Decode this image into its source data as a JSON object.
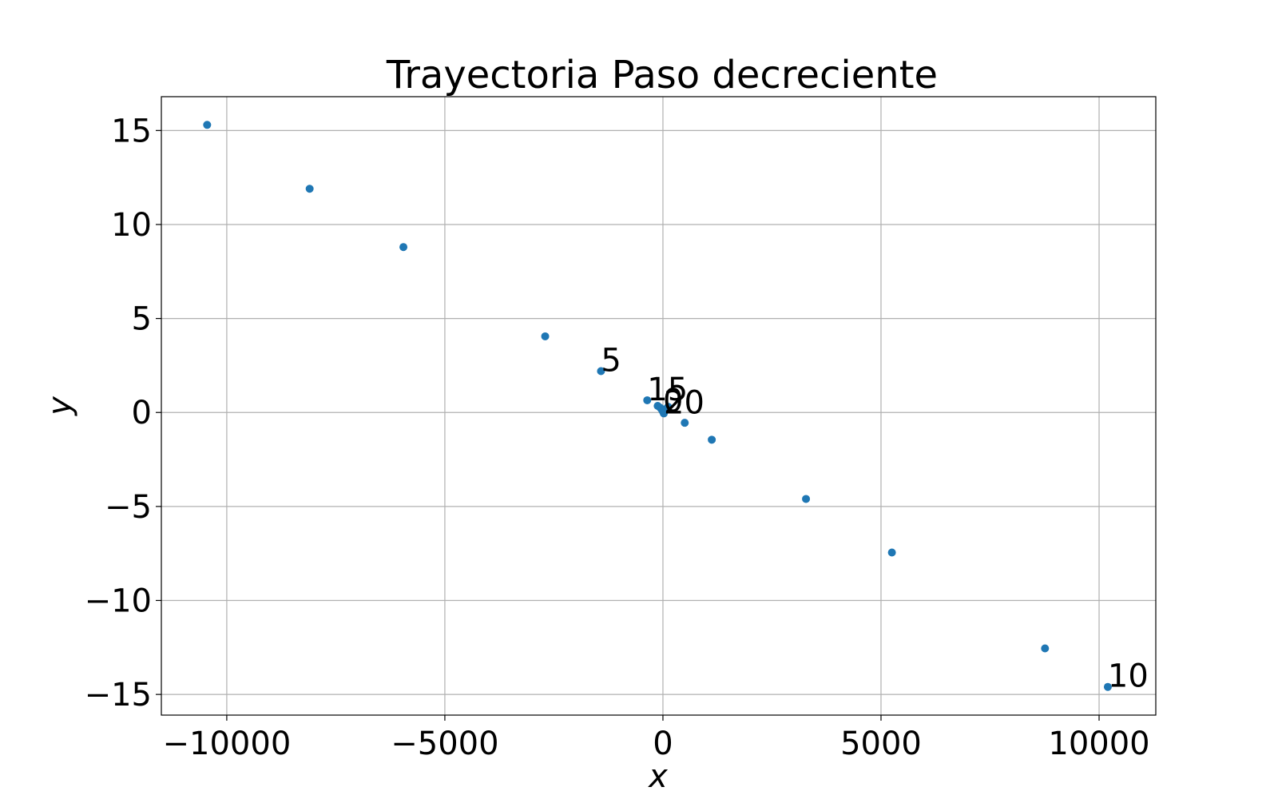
{
  "chart_data": {
    "type": "scatter",
    "title": "Trayectoria Paso decreciente",
    "xlabel": "x",
    "ylabel": "y",
    "xlim": [
      -11500,
      11300
    ],
    "ylim": [
      -16.1,
      16.8
    ],
    "grid": true,
    "x_ticks": [
      -10000,
      -5000,
      0,
      5000,
      10000
    ],
    "x_tick_labels": [
      "−10000",
      "−5000",
      "0",
      "5000",
      "10000"
    ],
    "y_ticks": [
      -15,
      -10,
      -5,
      0,
      5,
      10,
      15
    ],
    "y_tick_labels": [
      "−15",
      "−10",
      "−5",
      "0",
      "5",
      "10",
      "15"
    ],
    "marker_color": "#1f77b4",
    "points": [
      {
        "x": -10450,
        "y": 15.3
      },
      {
        "x": -8100,
        "y": 11.9
      },
      {
        "x": -5950,
        "y": 8.8
      },
      {
        "x": -2700,
        "y": 4.05
      },
      {
        "x": -1420,
        "y": 2.2
      },
      {
        "x": -360,
        "y": 0.65
      },
      {
        "x": -120,
        "y": 0.35
      },
      {
        "x": -60,
        "y": 0.25
      },
      {
        "x": -25,
        "y": 0.15
      },
      {
        "x": 0,
        "y": 0.05
      },
      {
        "x": 20,
        "y": -0.05
      },
      {
        "x": 45,
        "y": 0.12
      },
      {
        "x": 80,
        "y": 0.2
      },
      {
        "x": 120,
        "y": 0.3
      },
      {
        "x": 500,
        "y": -0.55
      },
      {
        "x": 1120,
        "y": -1.45
      },
      {
        "x": 3280,
        "y": -4.6
      },
      {
        "x": 5250,
        "y": -7.45
      },
      {
        "x": 8760,
        "y": -12.55
      },
      {
        "x": 10200,
        "y": -14.6
      }
    ],
    "annotations": [
      {
        "text": "5",
        "x": -1420,
        "y": 2.2
      },
      {
        "text": "10",
        "x": 10200,
        "y": -14.6
      },
      {
        "text": "15",
        "x": -360,
        "y": 0.65
      },
      {
        "text": "20",
        "x": 20,
        "y": -0.05
      },
      {
        "text": "0",
        "x": 0,
        "y": 0.05
      }
    ]
  }
}
